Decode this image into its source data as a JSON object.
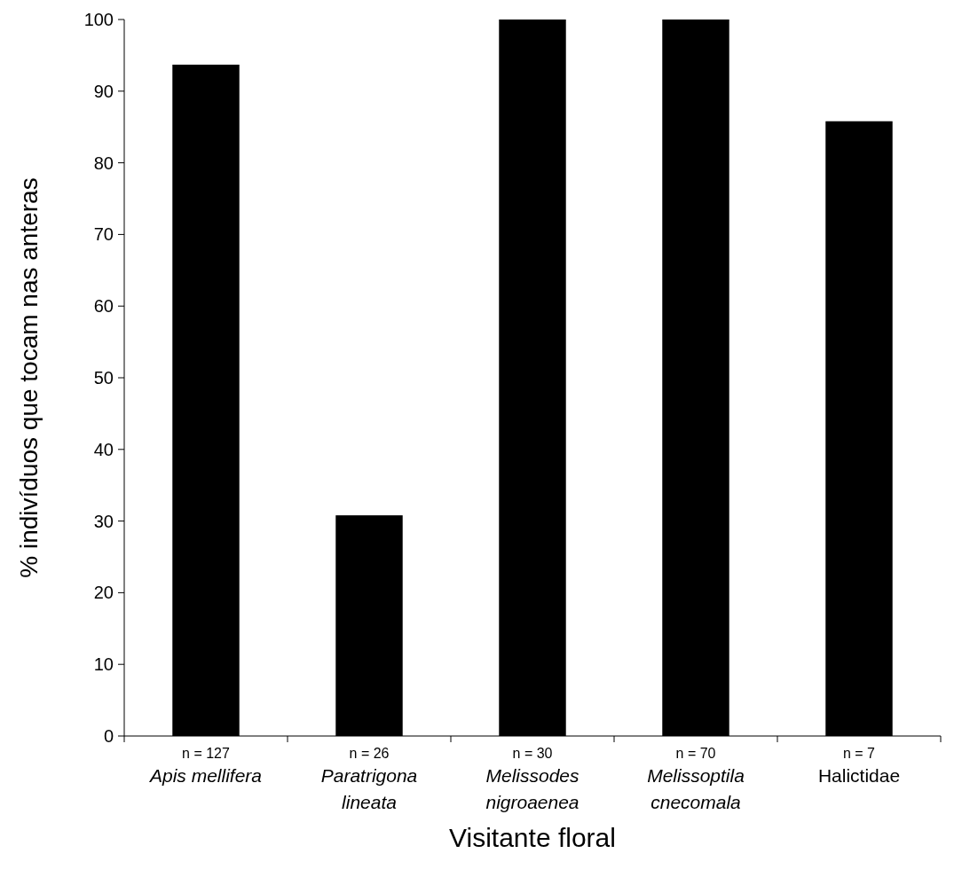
{
  "chart_data": {
    "type": "bar",
    "xlabel": "Visitante floral",
    "ylabel": "% indivíduos que tocam nas anteras",
    "categories": [
      "Apis mellifera",
      "Paratrigona lineata",
      "Melissodes nigroaenea",
      "Melissoptila cnecomala",
      "Halictidae"
    ],
    "values": [
      93.7,
      30.8,
      100,
      100,
      85.8
    ],
    "color": "#000000",
    "ylim": [
      0,
      100
    ],
    "yticks": [
      0,
      10,
      20,
      30,
      40,
      50,
      60,
      70,
      80,
      90,
      100
    ],
    "grid": false,
    "annotations": [
      "n = 127",
      "n = 26",
      "n = 30",
      "n = 70",
      "n = 7"
    ]
  }
}
